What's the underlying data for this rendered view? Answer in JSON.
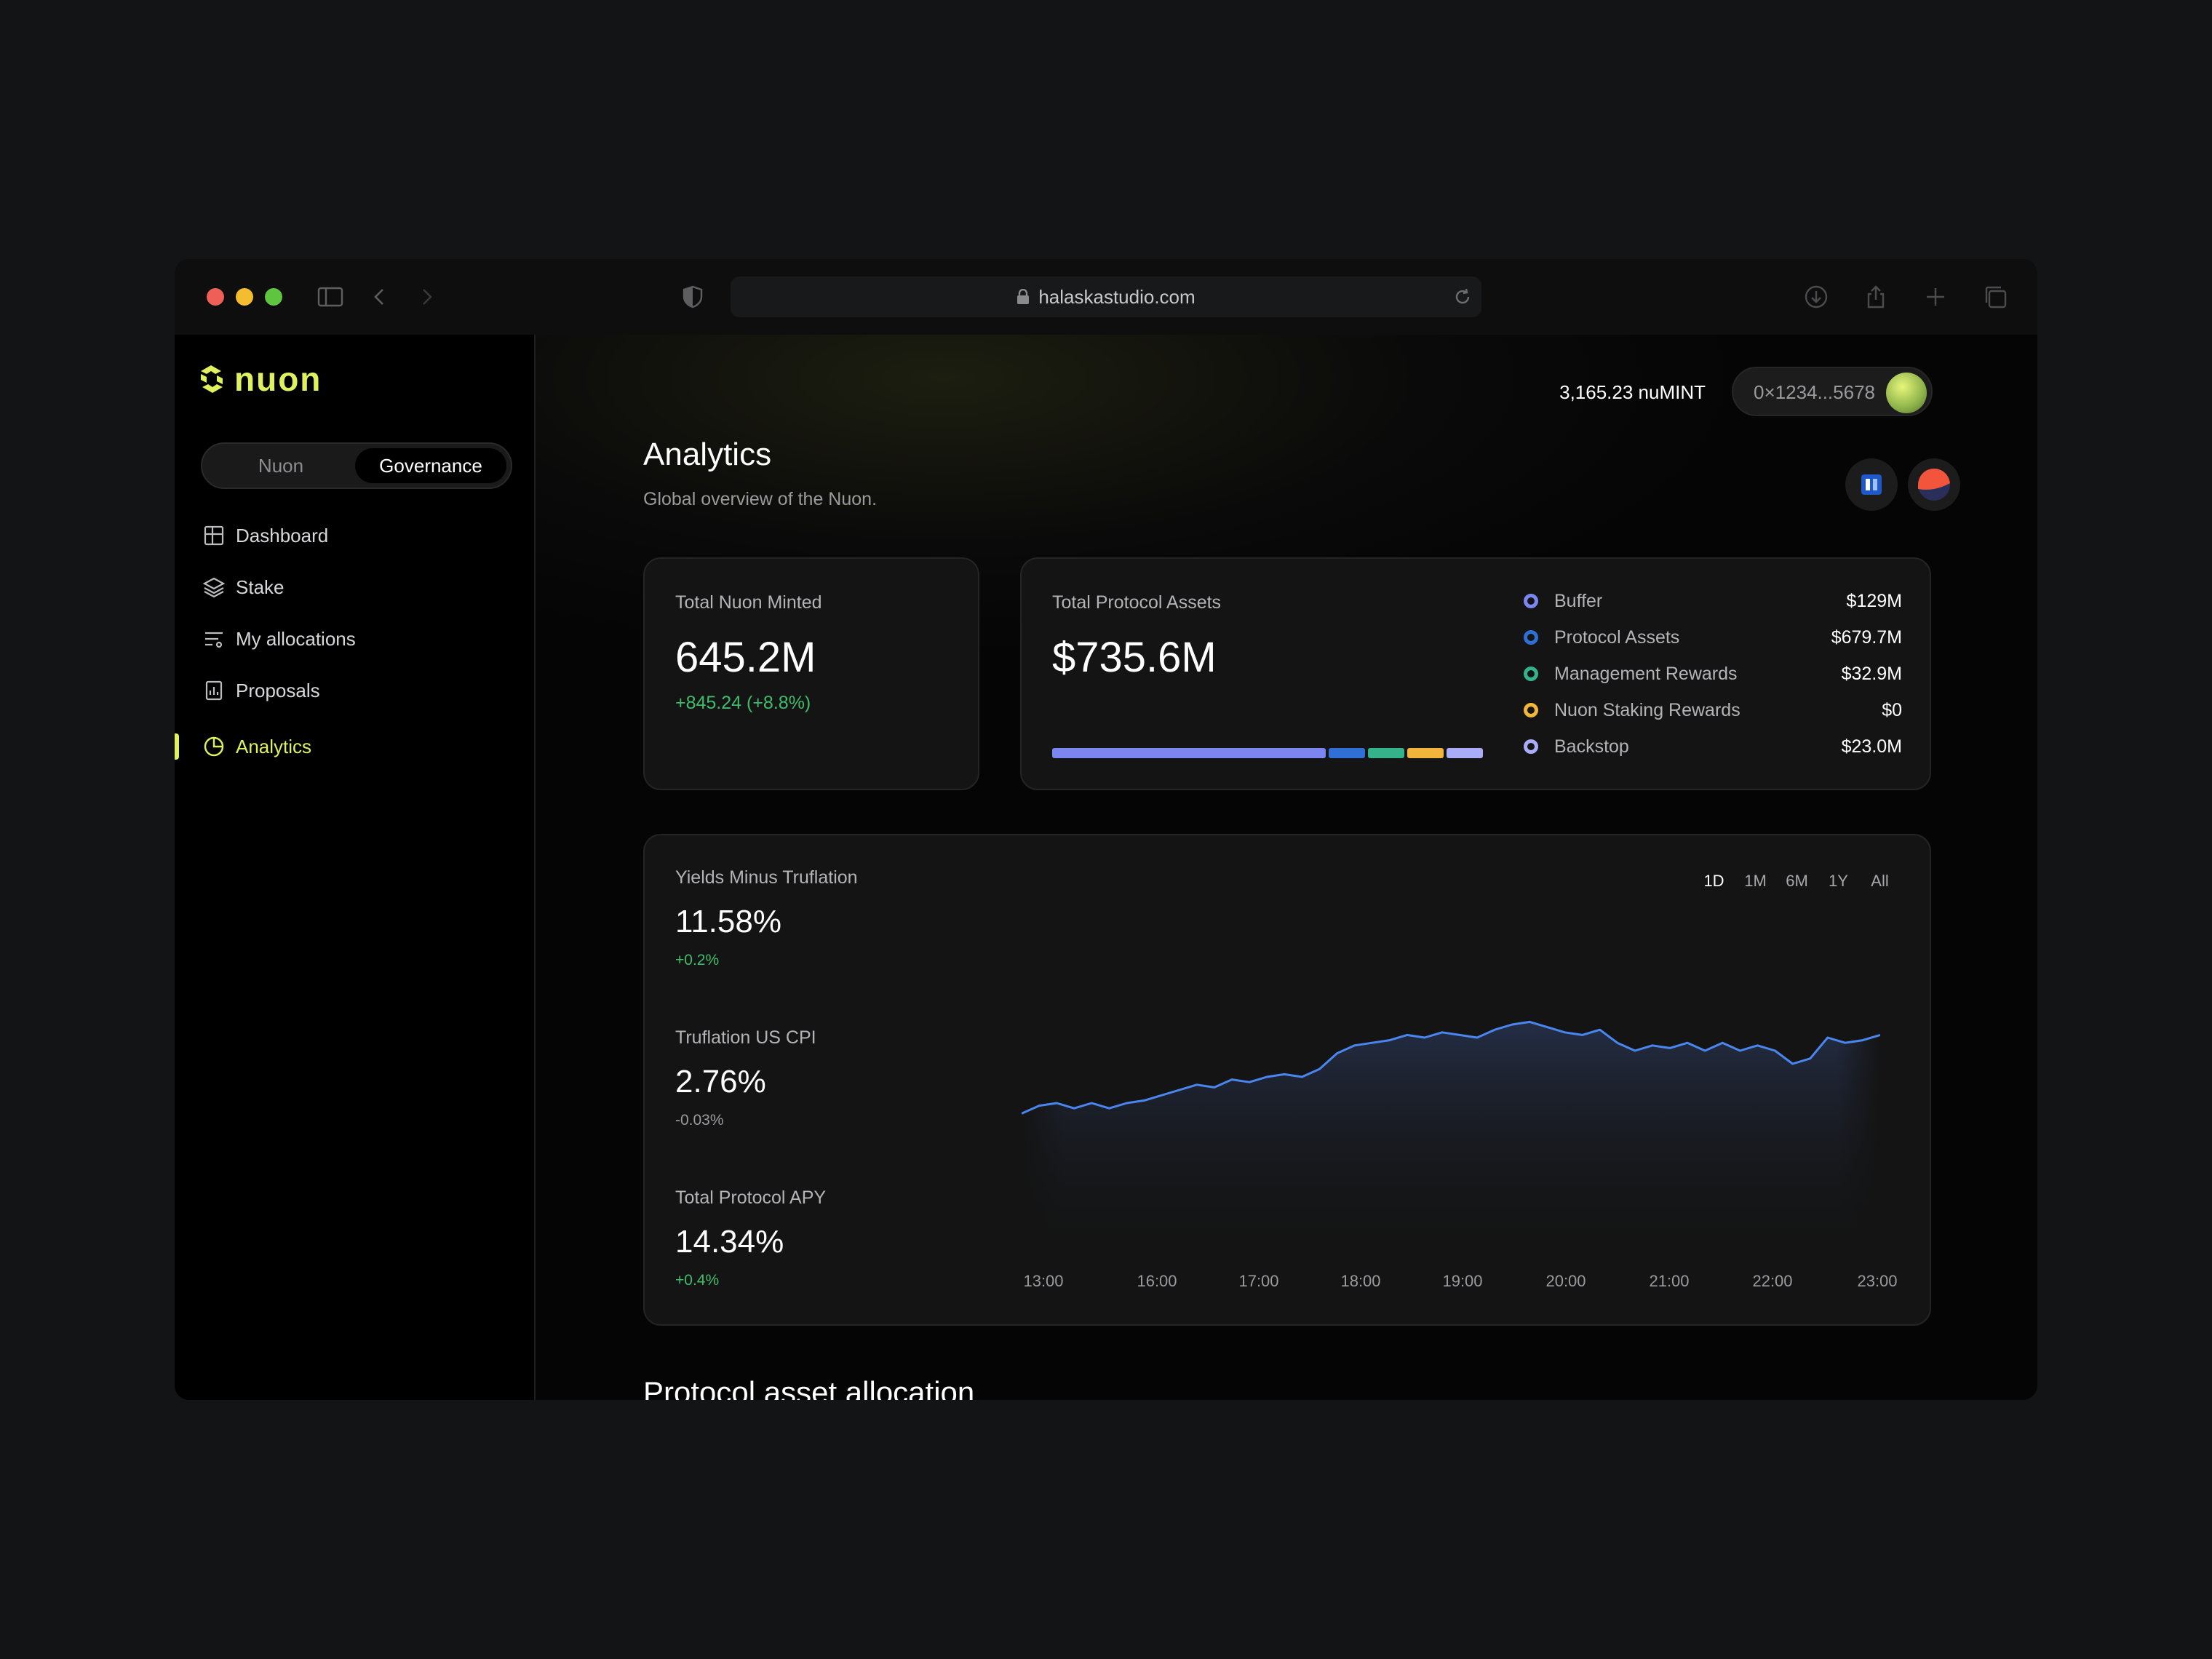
{
  "browser": {
    "url": "halaskastudio.com"
  },
  "app": {
    "brand": "nuon"
  },
  "sidebar": {
    "segment": {
      "options": [
        "Nuon",
        "Governance"
      ],
      "selected": "Governance"
    },
    "items": [
      {
        "label": "Dashboard",
        "icon": "grid-icon"
      },
      {
        "label": "Stake",
        "icon": "layers-icon"
      },
      {
        "label": "My allocations",
        "icon": "list-icon"
      },
      {
        "label": "Proposals",
        "icon": "report-icon"
      },
      {
        "label": "Analytics",
        "icon": "pie-icon",
        "active": true
      }
    ]
  },
  "header": {
    "balance": "3,165.23 nuMINT",
    "wallet": "0×1234...5678"
  },
  "page": {
    "title": "Analytics",
    "subtitle": "Global overview of the Nuon."
  },
  "minted": {
    "label": "Total Nuon Minted",
    "value": "645.2M",
    "change": "+845.24 (+8.8%)"
  },
  "assets": {
    "label": "Total Protocol Assets",
    "value": "$735.6M",
    "legend": [
      {
        "name": "Buffer",
        "value": "$129M",
        "color": "#7b86f0"
      },
      {
        "name": "Protocol Assets",
        "value": "$679.7M",
        "color": "#2f6fd6"
      },
      {
        "name": "Management Rewards",
        "value": "$32.9M",
        "color": "#34b38a"
      },
      {
        "name": "Nuon Staking Rewards",
        "value": "$0",
        "color": "#f2b53c"
      },
      {
        "name": "Backstop",
        "value": "$23.0M",
        "color": "#a9acf7"
      }
    ]
  },
  "yields": {
    "metrics": [
      {
        "label": "Yields Minus Truflation",
        "value": "11.58%",
        "change": "+0.2%",
        "dir": "up"
      },
      {
        "label": "Truflation US CPI",
        "value": "2.76%",
        "change": "-0.03%",
        "dir": "down"
      },
      {
        "label": "Total Protocol APY",
        "value": "14.34%",
        "change": "+0.4%",
        "dir": "up"
      }
    ],
    "ranges": [
      "1D",
      "1M",
      "6M",
      "1Y",
      "All"
    ],
    "selected_range": "1D"
  },
  "chart_data": {
    "type": "area",
    "x_ticks": [
      "13:00",
      "16:00",
      "17:00",
      "18:00",
      "19:00",
      "20:00",
      "21:00",
      "22:00",
      "23:00"
    ],
    "ylim": [
      0,
      10
    ],
    "series": [
      {
        "values": [
          4.1,
          4.4,
          4.5,
          4.3,
          4.5,
          4.3,
          4.5,
          4.6,
          4.8,
          5.0,
          5.2,
          5.1,
          5.4,
          5.3,
          5.5,
          5.6,
          5.5,
          5.8,
          6.4,
          6.7,
          6.8,
          6.9,
          7.1,
          7.0,
          7.2,
          7.1,
          7.0,
          7.3,
          7.5,
          7.6,
          7.4,
          7.2,
          7.1,
          7.3,
          6.8,
          6.5,
          6.7,
          6.6,
          6.8,
          6.5,
          6.8,
          6.5,
          6.7,
          6.5,
          6.0,
          6.2,
          7.0,
          6.8,
          6.9,
          7.1
        ]
      }
    ],
    "line_color": "#4a86f0"
  },
  "section": {
    "heading": "Protocol asset allocation"
  }
}
